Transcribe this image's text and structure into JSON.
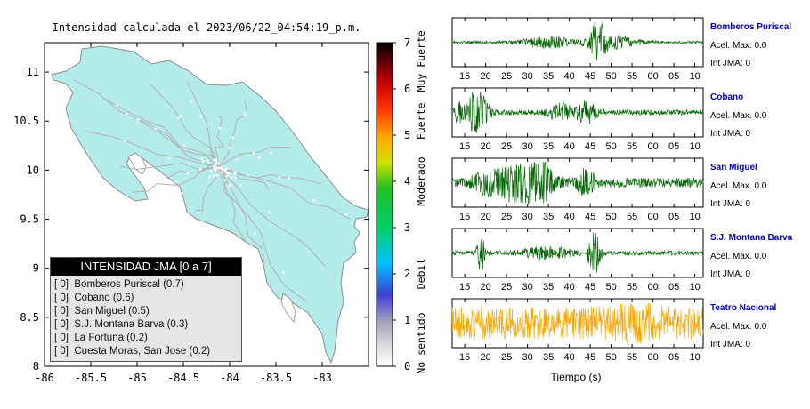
{
  "map": {
    "title": "Intensidad calculada el 2023/06/22_04:54:19_p.m.",
    "xticks": [
      "-86",
      "-85.5",
      "-85",
      "-84.5",
      "-84",
      "-83.5",
      "-83"
    ],
    "yticks": [
      "8",
      "8.5",
      "9",
      "9.5",
      "10",
      "10.5",
      "11"
    ],
    "xlim": [
      -86,
      -82.5
    ],
    "ylim": [
      8,
      11.3
    ],
    "land_color": "#b4ecec",
    "road_color": "#b0b0b0"
  },
  "legend": {
    "title": "INTENSIDAD JMA [0 a 7]",
    "items": [
      {
        "intensity": "[ 0]",
        "station": "Bomberos Puriscal (0.7)"
      },
      {
        "intensity": "[ 0]",
        "station": "Cobano (0.6)"
      },
      {
        "intensity": "[ 0]",
        "station": "San Miguel (0.5)"
      },
      {
        "intensity": "[ 0]",
        "station": "S.J. Montana Barva (0.3)"
      },
      {
        "intensity": "[ 0]",
        "station": "La Fortuna (0.2)"
      },
      {
        "intensity": "[ 0]",
        "station": "Cuesta Moras, San Jose (0.2)"
      }
    ]
  },
  "colorbar": {
    "ticks": [
      "0",
      "1",
      "2",
      "3",
      "4",
      "5",
      "6",
      "7"
    ],
    "range": [
      0,
      7
    ],
    "labels": [
      {
        "text": "No sentido",
        "value": 0.5
      },
      {
        "text": "Debil",
        "value": 2
      },
      {
        "text": "Moderado",
        "value": 4
      },
      {
        "text": "Fuerte",
        "value": 5.3
      },
      {
        "text": "Muy Fuerte",
        "value": 6.6
      }
    ]
  },
  "chart_data": {
    "type": "line",
    "xlabel": "Tiempo (s)",
    "x_tick_labels": [
      "15",
      "20",
      "25",
      "30",
      "35",
      "40",
      "45",
      "50",
      "55",
      "00",
      "05",
      "10"
    ],
    "series": [
      {
        "name": "Bomberos Puriscal",
        "accel": "Acel. Max. 0.0",
        "int": "Int JMA: 0",
        "color": "#006400",
        "noise": 0.06,
        "bursts": [
          {
            "t": 35,
            "w": 6,
            "amp": 0.25
          },
          {
            "t": 47,
            "w": 1.5,
            "amp": 1.0
          },
          {
            "t": 50,
            "w": 6,
            "amp": 0.3
          }
        ]
      },
      {
        "name": "Cobano",
        "accel": "Acel. Max. 0.0",
        "int": "Int JMA: 0",
        "color": "#006400",
        "noise": 0.12,
        "bursts": [
          {
            "t": 18,
            "w": 2.5,
            "amp": 1.0
          },
          {
            "t": 14,
            "w": 2,
            "amp": 0.4
          },
          {
            "t": 38,
            "w": 3,
            "amp": 0.35
          },
          {
            "t": 44,
            "w": 2.5,
            "amp": 0.45
          }
        ]
      },
      {
        "name": "San Miguel",
        "accel": "Acel. Max. 0.0",
        "int": "Int JMA: 0",
        "color": "#006400",
        "noise": 0.22,
        "bursts": [
          {
            "t": 27,
            "w": 4,
            "amp": 0.8
          },
          {
            "t": 33,
            "w": 3,
            "amp": 1.0
          },
          {
            "t": 44,
            "w": 2,
            "amp": 0.5
          },
          {
            "t": 20,
            "w": 3,
            "amp": 0.5
          }
        ]
      },
      {
        "name": "S.J. Montana Barva",
        "accel": "Acel. Max. 0.0",
        "int": "Int JMA: 0",
        "color": "#006400",
        "noise": 0.1,
        "bursts": [
          {
            "t": 19,
            "w": 1.2,
            "amp": 0.85
          },
          {
            "t": 46,
            "w": 1.5,
            "amp": 0.95
          },
          {
            "t": 35,
            "w": 6,
            "amp": 0.25
          }
        ]
      },
      {
        "name": "Teatro Nacional",
        "accel": "Acel. Max. 0.0",
        "int": "Int JMA: 0",
        "color": "#ffa500",
        "noise": 0.75,
        "bursts": [
          {
            "t": 56,
            "w": 6,
            "amp": 0.25
          }
        ]
      }
    ]
  }
}
